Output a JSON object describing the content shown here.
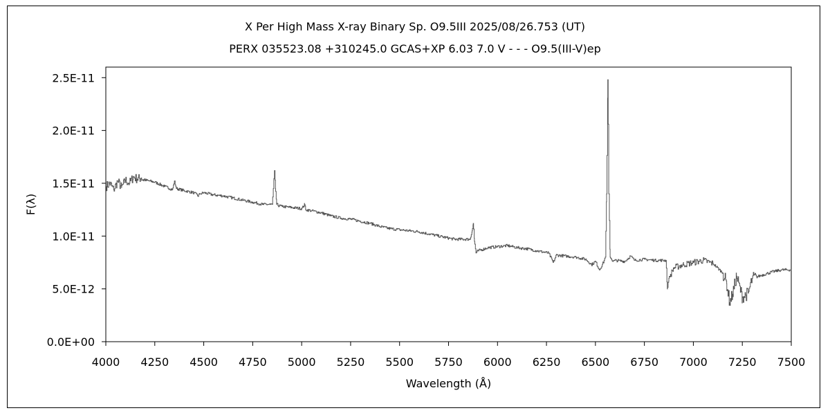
{
  "chart_data": {
    "type": "line",
    "title": "X Per    High Mass X-ray Binary    Sp. O9.5III    2025/08/26.753 (UT)",
    "subtitle": "PERX 035523.08 +310245.0 GCAS+XP 6.03 7.0 V - - - O9.5(III-V)ep",
    "xlabel": "Wavelength (Å)",
    "ylabel": "F(λ)",
    "xlim": [
      4000,
      7500
    ],
    "ylim": [
      0,
      2.6e-11
    ],
    "xticks": [
      4000,
      4250,
      4500,
      4750,
      5000,
      5250,
      5500,
      5750,
      6000,
      6250,
      6500,
      6750,
      7000,
      7250,
      7500
    ],
    "xtick_labels": [
      "4000",
      "4250",
      "4500",
      "4750",
      "5000",
      "5250",
      "5500",
      "5750",
      "6000",
      "6250",
      "6500",
      "6750",
      "7000",
      "7250",
      "7500"
    ],
    "yticks": [
      0,
      5e-12,
      1e-11,
      1.5e-11,
      2e-11,
      2.5e-11
    ],
    "ytick_labels": [
      "0.0E+00",
      "5.0E-12",
      "1.0E-11",
      "1.5E-11",
      "2.0E-11",
      "2.5E-11"
    ],
    "grid": false,
    "line_color": "#555555",
    "series": [
      {
        "x": [
          4000,
          4020,
          4040,
          4060,
          4080,
          4100,
          4120,
          4140,
          4160,
          4180,
          4200,
          4250,
          4300,
          4340,
          4350,
          4360,
          4400,
          4450,
          4470,
          4480,
          4500,
          4550,
          4600,
          4650,
          4700,
          4750,
          4800,
          4840,
          4850,
          4855,
          4861,
          4866,
          4872,
          4880,
          4900,
          4950,
          5000,
          5015,
          5020,
          5050,
          5100,
          5150,
          5200,
          5250,
          5300,
          5350,
          5400,
          5450,
          5500,
          5550,
          5600,
          5650,
          5700,
          5750,
          5780,
          5860,
          5870,
          5876,
          5882,
          5890,
          5900,
          5950,
          6000,
          6050,
          6100,
          6150,
          6200,
          6260,
          6284,
          6300,
          6350,
          6400,
          6450,
          6480,
          6500,
          6520,
          6540,
          6550,
          6557,
          6563,
          6568,
          6575,
          6590,
          6600,
          6650,
          6678,
          6700,
          6750,
          6800,
          6860,
          6867,
          6875,
          6900,
          6950,
          7000,
          7050,
          7100,
          7150,
          7170,
          7185,
          7200,
          7220,
          7250,
          7280,
          7300,
          7350,
          7400,
          7450,
          7500
        ],
        "y": [
          1.47e-11,
          1.5e-11,
          1.44e-11,
          1.52e-11,
          1.46e-11,
          1.53e-11,
          1.5e-11,
          1.56e-11,
          1.54e-11,
          1.55e-11,
          1.53e-11,
          1.51e-11,
          1.47e-11,
          1.44e-11,
          1.52e-11,
          1.45e-11,
          1.43e-11,
          1.41e-11,
          1.38e-11,
          1.4e-11,
          1.41e-11,
          1.39e-11,
          1.38e-11,
          1.36e-11,
          1.34e-11,
          1.32e-11,
          1.3e-11,
          1.3e-11,
          1.3e-11,
          1.45e-11,
          1.62e-11,
          1.45e-11,
          1.3e-11,
          1.29e-11,
          1.28e-11,
          1.27e-11,
          1.26e-11,
          1.3e-11,
          1.25e-11,
          1.24e-11,
          1.22e-11,
          1.19e-11,
          1.17e-11,
          1.16e-11,
          1.14e-11,
          1.12e-11,
          1.09e-11,
          1.07e-11,
          1.06e-11,
          1.05e-11,
          1.04e-11,
          1.02e-11,
          1e-11,
          9.8e-12,
          9.7e-12,
          9.7e-12,
          1.05e-11,
          1.12e-11,
          9.5e-12,
          8.4e-12,
          8.6e-12,
          8.9e-12,
          9e-12,
          9.1e-12,
          8.9e-12,
          8.8e-12,
          8.6e-12,
          8.4e-12,
          7.5e-12,
          8.2e-12,
          8.1e-12,
          8e-12,
          7.8e-12,
          7.3e-12,
          7.6e-12,
          6.8e-12,
          7.5e-12,
          8e-12,
          1.4e-11,
          2.48e-11,
          1.4e-11,
          8e-12,
          7.6e-12,
          7.7e-12,
          7.6e-12,
          8.1e-12,
          7.7e-12,
          7.8e-12,
          7.7e-12,
          7.7e-12,
          5e-12,
          6e-12,
          7e-12,
          7.3e-12,
          7.5e-12,
          7.7e-12,
          7.4e-12,
          6.5e-12,
          5.5e-12,
          3.7e-12,
          4.5e-12,
          6.2e-12,
          4.2e-12,
          4.6e-12,
          6e-12,
          6.3e-12,
          6.6e-12,
          6.8e-12,
          6.8e-12
        ]
      }
    ]
  }
}
